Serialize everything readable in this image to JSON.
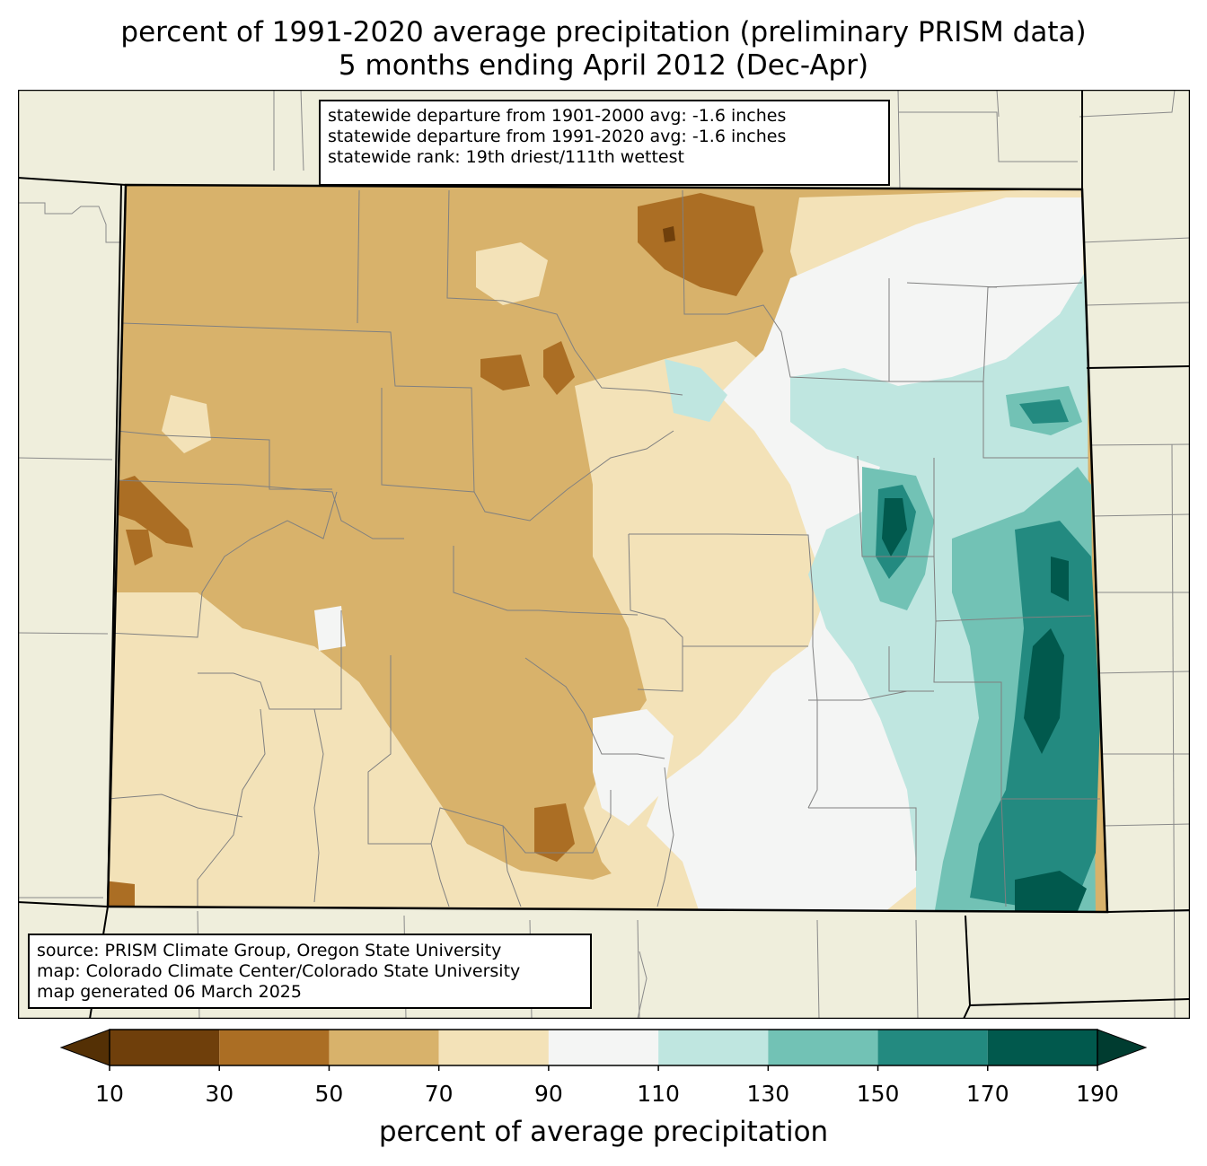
{
  "title": {
    "line1": "percent of 1991-2020 average precipitation (preliminary PRISM data)",
    "line2": "5 months ending April 2012 (Dec-Apr)"
  },
  "stats_box": {
    "line1": "statewide departure from 1901-2000 avg: -1.6 inches",
    "line2": "statewide departure from 1991-2020 avg: -1.6 inches",
    "line3": "statewide rank: 19th driest/111th wettest"
  },
  "source_box": {
    "line1": "source: PRISM Climate Group, Oregon State University",
    "line2": "map: Colorado Climate Center/Colorado State University",
    "line3": "map generated 06 March 2025"
  },
  "colorbar": {
    "label": "percent of average precipitation",
    "ticks": [
      "10",
      "30",
      "50",
      "70",
      "90",
      "110",
      "130",
      "150",
      "170",
      "190"
    ],
    "colors": {
      "under": "#543005",
      "10-30": "#6f3f0b",
      "30-50": "#ab6e24",
      "50-70": "#d8b26b",
      "70-90": "#f3e2b8",
      "90-110": "#f4f5f4",
      "110-130": "#bfe6e0",
      "130-150": "#72c2b5",
      "150-170": "#238a80",
      "170-190": "#01594d",
      "over": "#003c30"
    }
  },
  "map": {
    "background_color": "#efeedc",
    "border_color": "#000000",
    "county_line_color": "#808080"
  }
}
